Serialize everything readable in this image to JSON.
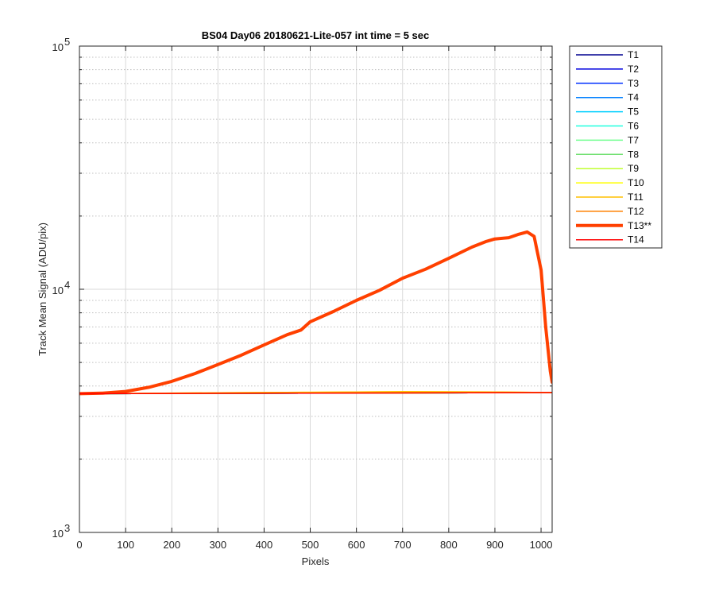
{
  "chart_data": {
    "type": "line",
    "title": "BS04 Day06 20180621-Lite-057 int time = 5 sec",
    "xlabel": "Pixels",
    "ylabel": "Track Mean Signal (ADU/pix)",
    "xlim": [
      0,
      1024
    ],
    "ylim": [
      1000,
      100000
    ],
    "yscale": "log",
    "x_ticks": [
      0,
      100,
      200,
      300,
      400,
      500,
      600,
      700,
      800,
      900,
      1000
    ],
    "y_ticks": [
      {
        "value": 1000,
        "base": "10",
        "exp": "3"
      },
      {
        "value": 10000,
        "base": "10",
        "exp": "4"
      },
      {
        "value": 100000,
        "base": "10",
        "exp": "5"
      }
    ],
    "grid": true,
    "legend_position": "outside-right",
    "series": [
      {
        "name": "T1",
        "color": "#00008F",
        "x": [
          0,
          1024
        ],
        "y": [
          3720,
          3760
        ]
      },
      {
        "name": "T2",
        "color": "#0000DF",
        "x": [
          0,
          1024
        ],
        "y": [
          3720,
          3760
        ]
      },
      {
        "name": "T3",
        "color": "#0030FF",
        "x": [
          0,
          1024
        ],
        "y": [
          3720,
          3760
        ]
      },
      {
        "name": "T4",
        "color": "#0080FF",
        "x": [
          0,
          1024
        ],
        "y": [
          3720,
          3760
        ]
      },
      {
        "name": "T5",
        "color": "#00CFFF",
        "x": [
          0,
          1024
        ],
        "y": [
          3720,
          3760
        ]
      },
      {
        "name": "T6",
        "color": "#20FFDF",
        "x": [
          0,
          1024
        ],
        "y": [
          3720,
          3760
        ]
      },
      {
        "name": "T7",
        "color": "#70FF8F",
        "x": [
          0,
          1024
        ],
        "y": [
          3720,
          3760
        ]
      },
      {
        "name": "T8",
        "color": "#70E070",
        "x": [
          0,
          1024
        ],
        "y": [
          3720,
          3760
        ]
      },
      {
        "name": "T9",
        "color": "#C0FF30",
        "x": [
          0,
          1024
        ],
        "y": [
          3720,
          3760
        ]
      },
      {
        "name": "T10",
        "color": "#FFFF00",
        "x": [
          0,
          100,
          300,
          500,
          700,
          900,
          1024
        ],
        "y": [
          3720,
          3730,
          3750,
          3770,
          3790,
          3780,
          3760
        ]
      },
      {
        "name": "T11",
        "color": "#FFBF00",
        "x": [
          0,
          100,
          300,
          500,
          700,
          900,
          1024
        ],
        "y": [
          3720,
          3730,
          3750,
          3770,
          3790,
          3780,
          3760
        ]
      },
      {
        "name": "T12",
        "color": "#FF8000",
        "x": [
          0,
          1024
        ],
        "y": [
          3720,
          3760
        ]
      },
      {
        "name": "T13**",
        "color": "#FF4000",
        "bold": true,
        "x": [
          0,
          50,
          100,
          150,
          200,
          250,
          300,
          350,
          400,
          450,
          480,
          500,
          550,
          600,
          650,
          700,
          750,
          800,
          850,
          880,
          900,
          930,
          950,
          970,
          985,
          1000,
          1010,
          1020,
          1024
        ],
        "y": [
          3720,
          3740,
          3800,
          3950,
          4180,
          4500,
          4900,
          5350,
          5900,
          6500,
          6800,
          7350,
          8100,
          9000,
          9900,
          11100,
          12100,
          13400,
          14900,
          15700,
          16100,
          16300,
          16800,
          17200,
          16500,
          12000,
          7000,
          4600,
          4150
        ]
      },
      {
        "name": "T14",
        "color": "#FF0000",
        "x": [
          0,
          1024
        ],
        "y": [
          3720,
          3760
        ]
      }
    ]
  }
}
